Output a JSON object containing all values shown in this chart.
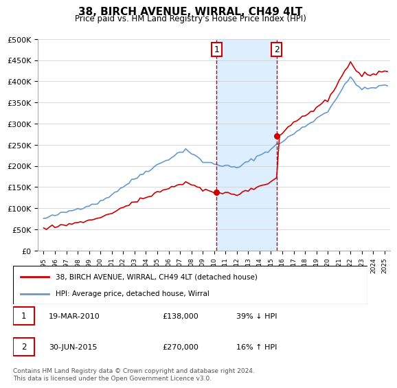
{
  "title": "38, BIRCH AVENUE, WIRRAL, CH49 4LT",
  "subtitle": "Price paid vs. HM Land Registry's House Price Index (HPI)",
  "legend_line1": "38, BIRCH AVENUE, WIRRAL, CH49 4LT (detached house)",
  "legend_line2": "HPI: Average price, detached house, Wirral",
  "footnote": "Contains HM Land Registry data © Crown copyright and database right 2024.\nThis data is licensed under the Open Government Licence v3.0.",
  "sale1_date": "19-MAR-2010",
  "sale1_price": "£138,000",
  "sale1_hpi": "39% ↓ HPI",
  "sale1_year": 2010.21,
  "sale1_value": 138000,
  "sale2_date": "30-JUN-2015",
  "sale2_price": "£270,000",
  "sale2_hpi": "16% ↑ HPI",
  "sale2_year": 2015.5,
  "sale2_value": 270000,
  "price_color": "#cc0000",
  "hpi_color": "#6699cc",
  "highlight_bg": "#ddeeff",
  "dashed_color": "#cc0000",
  "ylim_max": 500000,
  "xlim_min": 1994.5,
  "xlim_max": 2025.5
}
